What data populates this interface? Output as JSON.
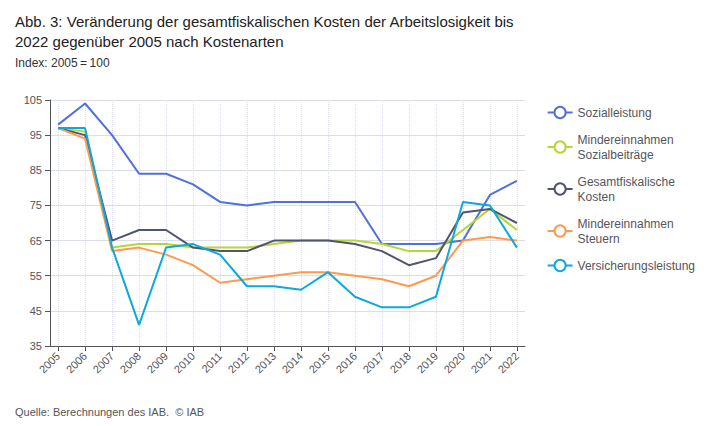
{
  "chart_data": {
    "type": "line",
    "title": "Abb. 3: Veränderung der gesamtfiskalischen Kosten der Arbeitslosigkeit bis\n2022 gegenüber 2005 nach Kostenarten",
    "subtitle": "Index: 2005 = 100",
    "annotations": [
      "Quelle: Berechnungen des IAB.  © IAB"
    ],
    "x": [
      2005,
      2006,
      2007,
      2008,
      2009,
      2010,
      2011,
      2012,
      2013,
      2014,
      2015,
      2016,
      2017,
      2018,
      2019,
      2020,
      2021,
      2022
    ],
    "series": [
      {
        "name": "Sozialleistung",
        "values": [
          98,
          104,
          95,
          84,
          84,
          81,
          76,
          75,
          76,
          76,
          76,
          76,
          64,
          64,
          64,
          65,
          78,
          82
        ]
      },
      {
        "name": "Mindereinnahmen\nSozialbeiträge",
        "values": [
          97,
          96,
          63,
          64,
          64,
          63,
          63,
          63,
          64,
          65,
          65,
          65,
          64,
          62,
          62,
          68,
          74,
          68
        ]
      },
      {
        "name": "Gesamtfiskalische\nKosten",
        "values": [
          97,
          95,
          65,
          68,
          68,
          63,
          62,
          62,
          65,
          65,
          65,
          64,
          62,
          58,
          60,
          73,
          74,
          70
        ]
      },
      {
        "name": "Mindereinnahmen\nSteuern",
        "values": [
          97,
          94,
          62,
          63,
          61,
          58,
          53,
          54,
          55,
          56,
          56,
          55,
          54,
          52,
          55,
          65,
          66,
          65
        ]
      },
      {
        "name": "Versicherungsleistung",
        "values": [
          97,
          97,
          63,
          41,
          63,
          64,
          61,
          52,
          52,
          51,
          56,
          49,
          46,
          46,
          49,
          76,
          75,
          63
        ]
      }
    ],
    "xlim": [
      2004.7,
      2022.3
    ],
    "xticks": [
      2005,
      2006,
      2007,
      2008,
      2009,
      2010,
      2011,
      2012,
      2013,
      2014,
      2015,
      2016,
      2017,
      2018,
      2019,
      2020,
      2021,
      2022
    ],
    "ylim": [
      35,
      105
    ],
    "yticks": [
      35,
      45,
      55,
      65,
      75,
      85,
      95,
      105
    ],
    "grid": true,
    "legend": "right"
  }
}
